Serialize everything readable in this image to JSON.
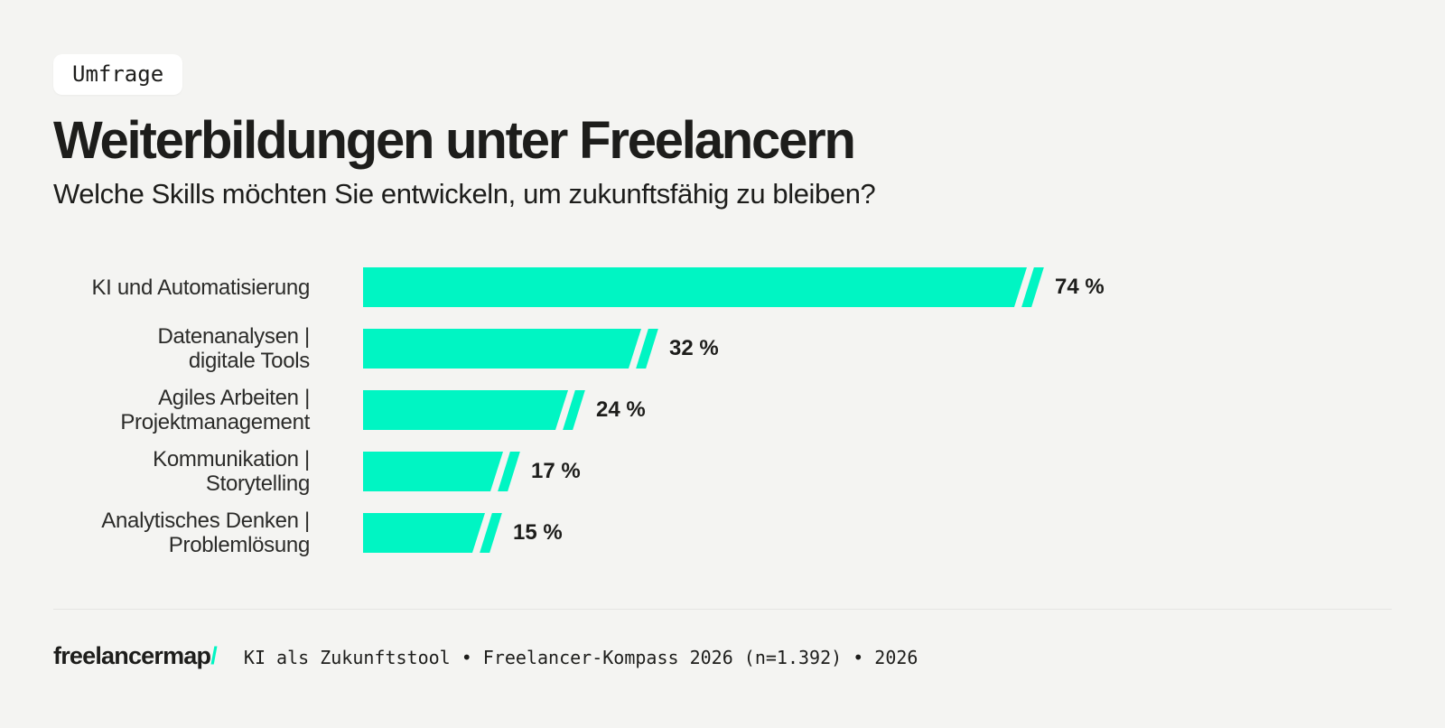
{
  "badge": {
    "label": "Umfrage"
  },
  "header": {
    "title": "Weiterbildungen unter Freelancern",
    "subtitle": "Welche Skills möchten Sie entwickeln, um zukunftsfähig zu bleiben?"
  },
  "chart_data": {
    "type": "bar",
    "orientation": "horizontal",
    "title": "Weiterbildungen unter Freelancern",
    "subtitle": "Welche Skills möchten Sie entwickeln, um zukunftsfähig zu bleiben?",
    "categories": [
      "KI und Automatisierung",
      "Datenanalysen | digitale Tools",
      "Agiles Arbeiten | Projektmanagement",
      "Kommunikation | Storytelling",
      "Analytisches Denken | Problemlösung"
    ],
    "label_lines": [
      [
        "KI und Automatisierung"
      ],
      [
        "Datenanalysen |",
        "digitale Tools"
      ],
      [
        "Agiles Arbeiten |",
        "Projektmanagement"
      ],
      [
        "Kommunikation |",
        "Storytelling"
      ],
      [
        "Analytisches Denken |",
        "Problemlösung"
      ]
    ],
    "values": [
      74,
      32,
      24,
      17,
      15
    ],
    "value_labels": [
      "74 %",
      "32 %",
      "24 %",
      "17 %",
      "15 %"
    ],
    "unit": "%",
    "xlim": [
      0,
      100
    ],
    "grid": false,
    "legend": false,
    "bar_color": "#00F5C3"
  },
  "footer": {
    "logo_text": "freelancermap",
    "logo_slash": "/",
    "source": "KI als Zukunftstool • Freelancer-Kompass 2026 (n=1.392) • 2026"
  },
  "colors": {
    "accent": "#00F5C3",
    "background": "#F4F4F2",
    "text": "#1D1D1B",
    "divider": "#E5E5E3",
    "badge_background": "#FFFFFF"
  }
}
